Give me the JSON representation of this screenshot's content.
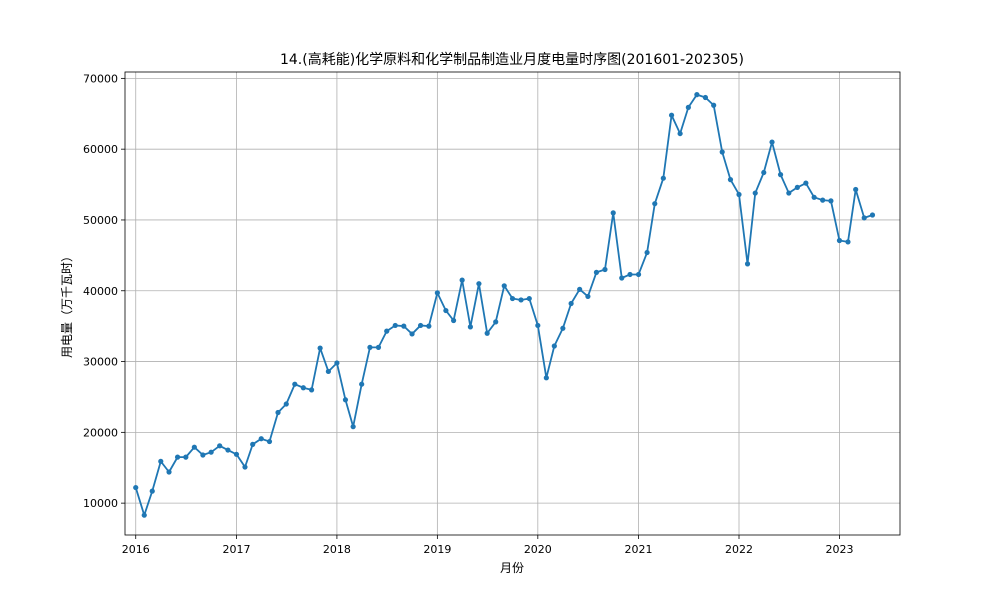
{
  "chart_data": {
    "type": "line",
    "title": "14.(高耗能)化学原料和化学制品制造业月度电量时序图(201601-202305)",
    "xlabel": "月份",
    "ylabel": "用电量（万千瓦时）",
    "grid": true,
    "colors": {
      "line": "#1f77b4",
      "grid": "#b0b0b0"
    },
    "xlim": [
      "2015-11-23",
      "2023-08-09"
    ],
    "ylim": [
      5500,
      70900
    ],
    "x_ticks": [
      "2016",
      "2017",
      "2018",
      "2019",
      "2020",
      "2021",
      "2022",
      "2023"
    ],
    "y_ticks": [
      "10000",
      "20000",
      "30000",
      "40000",
      "50000",
      "60000",
      "70000"
    ],
    "series": [
      {
        "x": [
          "2016-01",
          "2016-02",
          "2016-03",
          "2016-04",
          "2016-05",
          "2016-06",
          "2016-07",
          "2016-08",
          "2016-09",
          "2016-10",
          "2016-11",
          "2016-12",
          "2017-01",
          "2017-02",
          "2017-03",
          "2017-04",
          "2017-05",
          "2017-06",
          "2017-07",
          "2017-08",
          "2017-09",
          "2017-10",
          "2017-11",
          "2017-12",
          "2018-01",
          "2018-02",
          "2018-03",
          "2018-04",
          "2018-05",
          "2018-06",
          "2018-07",
          "2018-08",
          "2018-09",
          "2018-10",
          "2018-11",
          "2018-12",
          "2019-01",
          "2019-02",
          "2019-03",
          "2019-04",
          "2019-05",
          "2019-06",
          "2019-07",
          "2019-08",
          "2019-09",
          "2019-10",
          "2019-11",
          "2019-12",
          "2020-01",
          "2020-02",
          "2020-03",
          "2020-04",
          "2020-05",
          "2020-06",
          "2020-07",
          "2020-08",
          "2020-09",
          "2020-10",
          "2020-11",
          "2020-12",
          "2021-01",
          "2021-02",
          "2021-03",
          "2021-04",
          "2021-05",
          "2021-06",
          "2021-07",
          "2021-08",
          "2021-09",
          "2021-10",
          "2021-11",
          "2021-12",
          "2022-01",
          "2022-02",
          "2022-03",
          "2022-04",
          "2022-05",
          "2022-06",
          "2022-07",
          "2022-08",
          "2022-09",
          "2022-10",
          "2022-11",
          "2022-12",
          "2023-01",
          "2023-02",
          "2023-03",
          "2023-04",
          "2023-05"
        ],
        "values": [
          12200,
          8300,
          11700,
          15900,
          14400,
          16500,
          16500,
          17900,
          16800,
          17200,
          18100,
          17500,
          16900,
          15100,
          18300,
          19100,
          18700,
          22800,
          24000,
          26800,
          26300,
          26000,
          31900,
          28600,
          29800,
          24600,
          20800,
          26800,
          32000,
          32000,
          34300,
          35100,
          35000,
          33900,
          35100,
          35000,
          39700,
          37200,
          35800,
          41500,
          34900,
          41000,
          34000,
          35600,
          40700,
          38900,
          38700,
          38900,
          35100,
          27700,
          32200,
          34700,
          38200,
          40200,
          39200,
          42600,
          43000,
          51000,
          41800,
          42300,
          42300,
          45400,
          52300,
          55900,
          64800,
          62200,
          65900,
          67700,
          67300,
          66200,
          59600,
          55700,
          53600,
          43800,
          53800,
          56700,
          61000,
          56400,
          53800,
          54600,
          55200,
          53200,
          52800,
          52700,
          47100,
          46900,
          54300,
          50300,
          50700
        ]
      }
    ]
  }
}
